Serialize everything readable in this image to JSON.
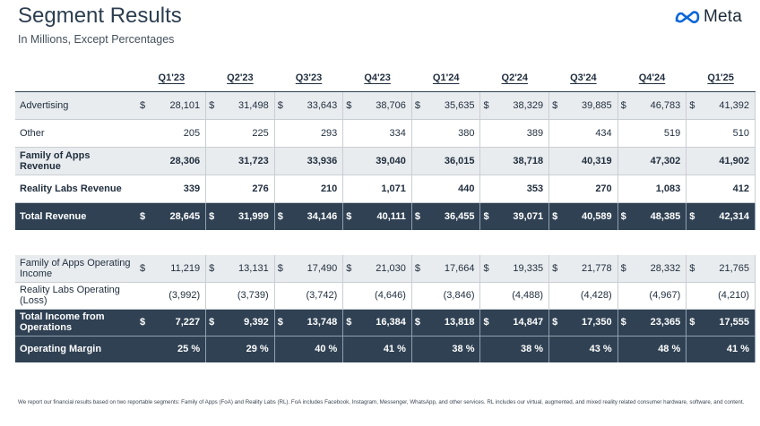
{
  "header": {
    "title": "Segment Results",
    "subtitle": "In Millions, Except Percentages",
    "logo_text": "Meta"
  },
  "quarters": [
    "Q1'23",
    "Q2'23",
    "Q3'23",
    "Q4'23",
    "Q1'24",
    "Q2'24",
    "Q3'24",
    "Q4'24",
    "Q1'25"
  ],
  "revenue_table": {
    "rows": [
      {
        "label": "Advertising",
        "currency": "$",
        "values": [
          "28,101",
          "31,498",
          "33,643",
          "38,706",
          "35,635",
          "38,329",
          "39,885",
          "46,783",
          "41,392"
        ]
      },
      {
        "label": "Other",
        "currency": "",
        "values": [
          "205",
          "225",
          "293",
          "334",
          "380",
          "389",
          "434",
          "519",
          "510"
        ]
      },
      {
        "label": "Family of Apps Revenue",
        "currency": "",
        "values": [
          "28,306",
          "31,723",
          "33,936",
          "39,040",
          "36,015",
          "38,718",
          "40,319",
          "47,302",
          "41,902"
        ]
      },
      {
        "label": "Reality Labs Revenue",
        "currency": "",
        "values": [
          "339",
          "276",
          "210",
          "1,071",
          "440",
          "353",
          "270",
          "1,083",
          "412"
        ]
      },
      {
        "label": "Total Revenue",
        "currency": "$",
        "values": [
          "28,645",
          "31,999",
          "34,146",
          "40,111",
          "36,455",
          "39,071",
          "40,589",
          "48,385",
          "42,314"
        ]
      }
    ]
  },
  "income_table": {
    "rows": [
      {
        "label": "Family of Apps Operating Income",
        "currency": "$",
        "values": [
          "11,219",
          "13,131",
          "17,490",
          "21,030",
          "17,664",
          "19,335",
          "21,778",
          "28,332",
          "21,765"
        ]
      },
      {
        "label": "Reality Labs Operating (Loss)",
        "currency": "",
        "values": [
          "(3,992)",
          "(3,739)",
          "(3,742)",
          "(4,646)",
          "(3,846)",
          "(4,488)",
          "(4,428)",
          "(4,967)",
          "(4,210)"
        ]
      },
      {
        "label": "Total Income from Operations",
        "currency": "$",
        "values": [
          "7,227",
          "9,392",
          "13,748",
          "16,384",
          "13,818",
          "14,847",
          "17,350",
          "23,365",
          "17,555"
        ]
      },
      {
        "label": "Operating Margin",
        "currency": "",
        "values": [
          "25 %",
          "29 %",
          "40 %",
          "41 %",
          "38 %",
          "38 %",
          "43 %",
          "48 %",
          "41 %"
        ]
      }
    ]
  },
  "footnote": "We report our financial results based on two reportable segments: Family of Apps (FoA) and Reality Labs (RL). FoA includes Facebook, Instagram, Messenger, WhatsApp, and other services. RL includes our virtual, augmented, and mixed reality related consumer hardware, software, and content."
}
